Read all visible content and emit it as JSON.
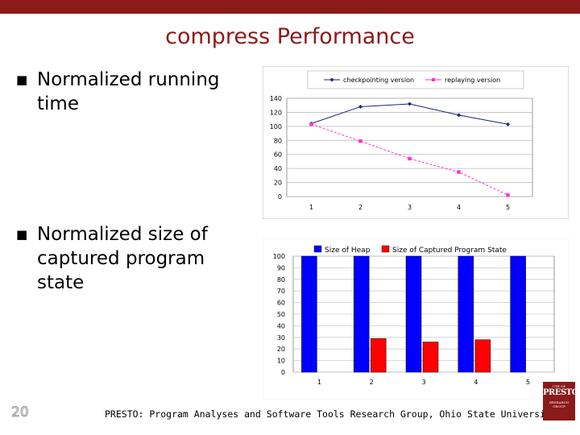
{
  "slide": {
    "title": "compress Performance",
    "bullets": [
      "Normalized running time",
      "Normalized size of captured program state"
    ],
    "page_number": "20",
    "footer": "PRESTO: Program Analyses and Software Tools Research Group, Ohio State University",
    "logo": {
      "small_top": "UTE OF",
      "main": "PRESTO",
      "small_bottom": "RESEARCH GROUP"
    }
  },
  "colors": {
    "brand": "#8b1a1a",
    "checkpointing": "#1a237e",
    "replaying": "#ff33cc",
    "heap": "#0000ff",
    "captured": "#ff0000"
  },
  "chart_data": [
    {
      "type": "line",
      "categories": [
        "1",
        "2",
        "3",
        "4",
        "5"
      ],
      "series": [
        {
          "name": "checkpointing version",
          "values": [
            104,
            128,
            132,
            116,
            103
          ]
        },
        {
          "name": "replaying version",
          "values": [
            103,
            79,
            54,
            35,
            2
          ]
        }
      ],
      "ylim": [
        0,
        140
      ],
      "yticks": [
        0,
        20,
        40,
        60,
        80,
        100,
        120,
        140
      ],
      "grid": true,
      "legend": "top"
    },
    {
      "type": "bar",
      "categories": [
        "1",
        "2",
        "3",
        "4",
        "5"
      ],
      "series": [
        {
          "name": "Size of Heap",
          "values": [
            100,
            100,
            100,
            100,
            100
          ]
        },
        {
          "name": "Size of Captured Program State",
          "values": [
            null,
            29,
            26,
            28,
            null
          ]
        }
      ],
      "ylim": [
        0,
        100
      ],
      "yticks": [
        0,
        10,
        20,
        30,
        40,
        50,
        60,
        70,
        80,
        90,
        100
      ],
      "grid": true,
      "legend": "top"
    }
  ]
}
